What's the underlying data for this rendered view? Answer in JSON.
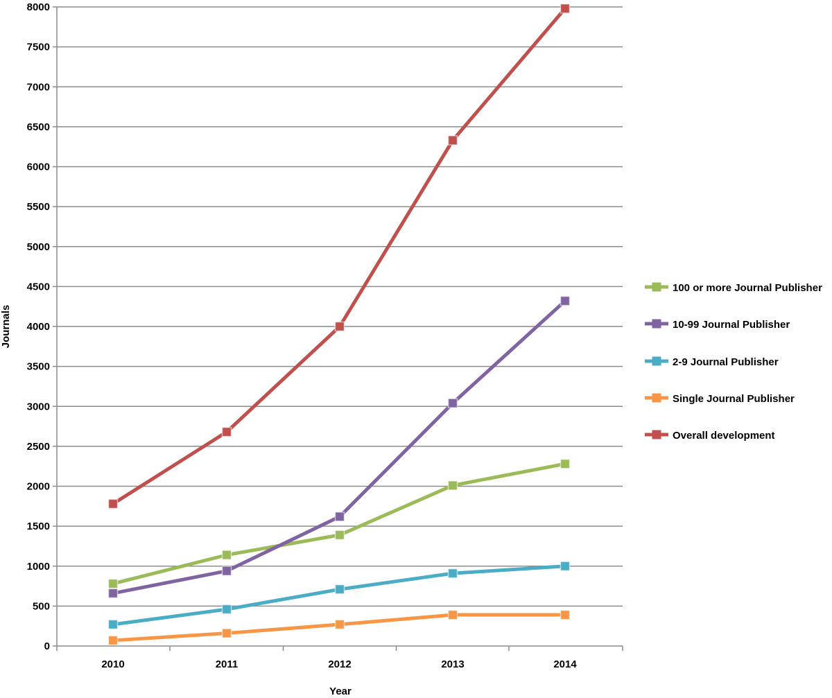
{
  "chart_data": {
    "type": "line",
    "title": "",
    "xlabel": "Year",
    "ylabel": "Journals",
    "x": [
      "2010",
      "2011",
      "2012",
      "2013",
      "2014"
    ],
    "ylim": [
      0,
      8000
    ],
    "yticks": [
      0,
      500,
      1000,
      1500,
      2000,
      2500,
      3000,
      3500,
      4000,
      4500,
      5000,
      5500,
      6000,
      6500,
      7000,
      7500,
      8000
    ],
    "grid": true,
    "legend_position": "right",
    "series": [
      {
        "name": "100 or more Journal Publisher",
        "color": "#9bbb59",
        "values": [
          780,
          1140,
          1390,
          2010,
          2280
        ]
      },
      {
        "name": "10-99 Journal Publisher",
        "color": "#8064a2",
        "values": [
          660,
          940,
          1620,
          3040,
          4320
        ]
      },
      {
        "name": "2-9 Journal Publisher",
        "color": "#4bacc6",
        "values": [
          270,
          460,
          710,
          910,
          1000
        ]
      },
      {
        "name": "Single Journal Publisher",
        "color": "#f79646",
        "values": [
          70,
          160,
          270,
          390,
          390
        ]
      },
      {
        "name": "Overall development",
        "color": "#c0504d",
        "values": [
          1780,
          2680,
          4000,
          6330,
          7980
        ]
      }
    ]
  }
}
